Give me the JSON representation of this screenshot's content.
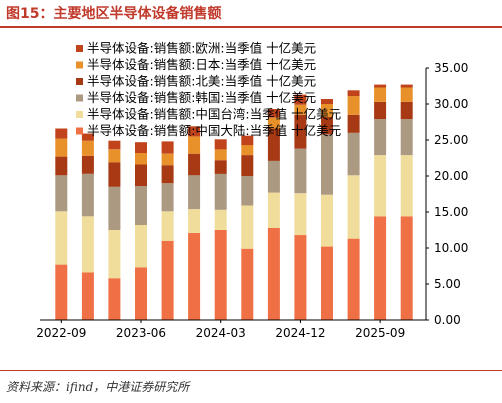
{
  "figure_title": "图15：主要地区半导体设备销售额",
  "source": "资料来源：ifind，中港证券研究所",
  "colors": {
    "title": "#c0392b",
    "europe": "#c0431b",
    "japan": "#e8912a",
    "north_america": "#a73a15",
    "korea": "#ac9982",
    "taiwan": "#f0dd9c",
    "mainland": "#f07045"
  },
  "chart_data": {
    "type": "bar",
    "stacked": true,
    "categories": [
      "2022-09",
      "2022-12",
      "2023-03",
      "2023-06",
      "2023-09",
      "2023-12",
      "2024-03",
      "2024-06",
      "2024-09",
      "2024-12",
      "2025-03",
      "2025-06",
      "2025-09",
      "2025-12"
    ],
    "x_tick_labels": [
      "2022-09",
      "2023-06",
      "2024-03",
      "2024-12",
      "2025-09"
    ],
    "ylim": [
      0,
      35
    ],
    "yticks": [
      "0.00",
      "5.00",
      "10.00",
      "15.00",
      "20.00",
      "25.00",
      "30.00",
      "35.00"
    ],
    "y_axis_position": "right",
    "legend_position": "top-left",
    "series": [
      {
        "name": "半导体设备:销售额:中国大陆:当季值 十亿美元",
        "color_key": "mainland",
        "values": [
          7.7,
          6.6,
          5.8,
          7.3,
          11.0,
          12.1,
          12.5,
          9.9,
          12.8,
          11.8,
          10.2,
          11.3,
          14.4,
          14.4
        ]
      },
      {
        "name": "半导体设备:销售额:中国台湾:当季值 十亿美元",
        "color_key": "taiwan",
        "values": [
          7.4,
          7.8,
          6.7,
          5.9,
          4.1,
          3.3,
          2.8,
          6.0,
          4.9,
          5.8,
          7.2,
          8.8,
          8.5,
          8.5
        ]
      },
      {
        "name": "半导体设备:销售额:韩国:当季值 十亿美元",
        "color_key": "korea",
        "values": [
          5.0,
          5.9,
          6.0,
          5.4,
          3.9,
          4.7,
          5.0,
          4.1,
          4.4,
          6.2,
          8.4,
          5.9,
          5.0,
          5.0
        ]
      },
      {
        "name": "半导体设备:销售额:北美:当季值 十亿美元",
        "color_key": "north_america",
        "values": [
          2.6,
          2.5,
          3.4,
          3.0,
          2.5,
          3.0,
          1.9,
          2.9,
          4.5,
          4.7,
          2.4,
          2.5,
          2.4,
          2.4
        ]
      },
      {
        "name": "半导体设备:销售额:日本:当季值 十亿美元",
        "color_key": "japan",
        "values": [
          2.5,
          2.1,
          1.8,
          1.6,
          1.6,
          2.4,
          1.5,
          1.4,
          1.5,
          1.4,
          1.8,
          2.6,
          2.0,
          2.0
        ]
      },
      {
        "name": "半导体设备:销售额:欧洲:当季值 十亿美元",
        "color_key": "europe",
        "values": [
          1.4,
          1.0,
          1.2,
          1.5,
          1.7,
          1.4,
          1.4,
          1.3,
          1.2,
          1.4,
          0.7,
          0.8,
          0.4,
          0.4
        ]
      }
    ]
  }
}
